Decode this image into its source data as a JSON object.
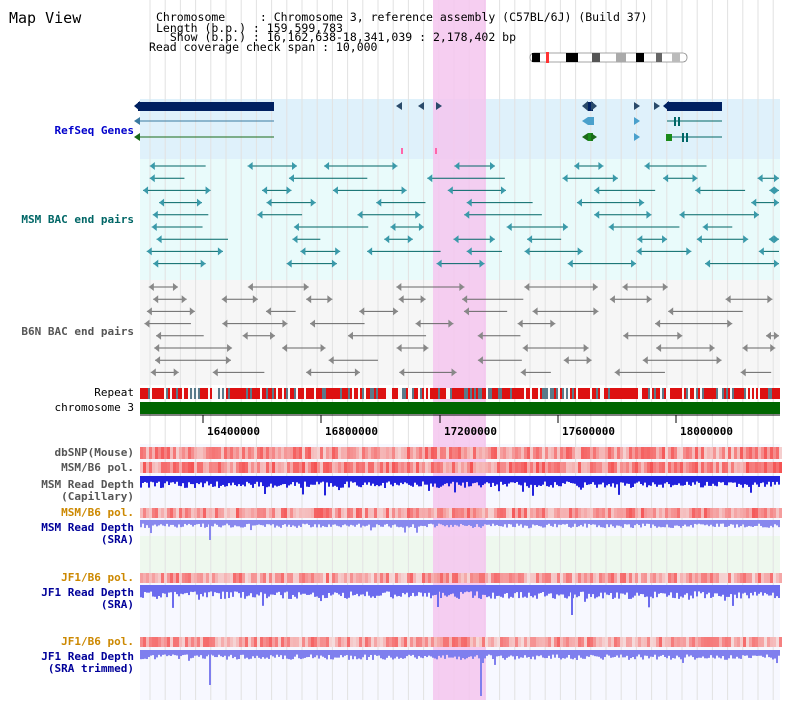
{
  "view": {
    "title": "Map View",
    "info_lines": [
      "Chromosome     : Chromosome 3, reference assembly (C57BL/6J) (Build 37)",
      "Length (b.p.) : 159,599,783",
      "  Show (b.p.) : 16,162,638-18,341,039 : 2,178,402 bp",
      "Read coverage check span : 10,000"
    ]
  },
  "axis": {
    "chromosome_label": "chromosome 3",
    "repeat_label": "Repeat",
    "ticks": [
      "16400000",
      "16800000",
      "17200000",
      "17600000",
      "18000000"
    ]
  },
  "tracks": {
    "refseq": "RefSeq Genes",
    "msm_bac": "MSM BAC end pairs",
    "b6n_bac": "B6N BAC end pairs",
    "dbsnp": "dbSNP(Mouse)",
    "msm_b6_pol_1": "MSM/B6 pol.",
    "msm_depth_cap": [
      "MSM Read Depth",
      "(Capillary)"
    ],
    "msm_b6_pol_2": "MSM/B6 pol.",
    "msm_depth_sra": [
      "MSM Read Depth",
      "(SRA)"
    ],
    "jf1_b6_pol_1": "JF1/B6 pol.",
    "jf1_depth_sra": [
      "JF1 Read Depth",
      "(SRA)"
    ],
    "jf1_b6_pol_2": "JF1/B6 pol.",
    "jf1_depth_trim": [
      "JF1 Read Depth",
      "(SRA trimmed)"
    ]
  },
  "colors": {
    "refseq_label": "#0000cc",
    "msm_bac_label": "#006666",
    "b6n_bac_label": "#555555",
    "jf1_pol_label": "#cc8800",
    "depth_label": "#000099",
    "highlight": "#f4c6ee",
    "gene_dark": "#002060",
    "chromosome_bar": "#006600"
  }
}
